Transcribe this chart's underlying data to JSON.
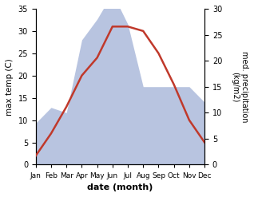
{
  "months": [
    "Jan",
    "Feb",
    "Mar",
    "Apr",
    "May",
    "Jun",
    "Jul",
    "Aug",
    "Sep",
    "Oct",
    "Nov",
    "Dec"
  ],
  "temperature": [
    2,
    7,
    13,
    20,
    24,
    31,
    31,
    30,
    25,
    18,
    10,
    5
  ],
  "precipitation": [
    8,
    11,
    10,
    24,
    28,
    33,
    27,
    15,
    15,
    15,
    15,
    12
  ],
  "temp_color": "#c0392b",
  "precip_fill_color": "#b8c4e0",
  "ylabel_left": "max temp (C)",
  "ylabel_right": "med. precipitation\n(kg/m2)",
  "xlabel": "date (month)",
  "ylim_left": [
    0,
    35
  ],
  "ylim_right": [
    0,
    30
  ],
  "yticks_left": [
    0,
    5,
    10,
    15,
    20,
    25,
    30,
    35
  ],
  "yticks_right": [
    0,
    5,
    10,
    15,
    20,
    25,
    30
  ],
  "figsize": [
    3.18,
    2.47
  ],
  "dpi": 100
}
